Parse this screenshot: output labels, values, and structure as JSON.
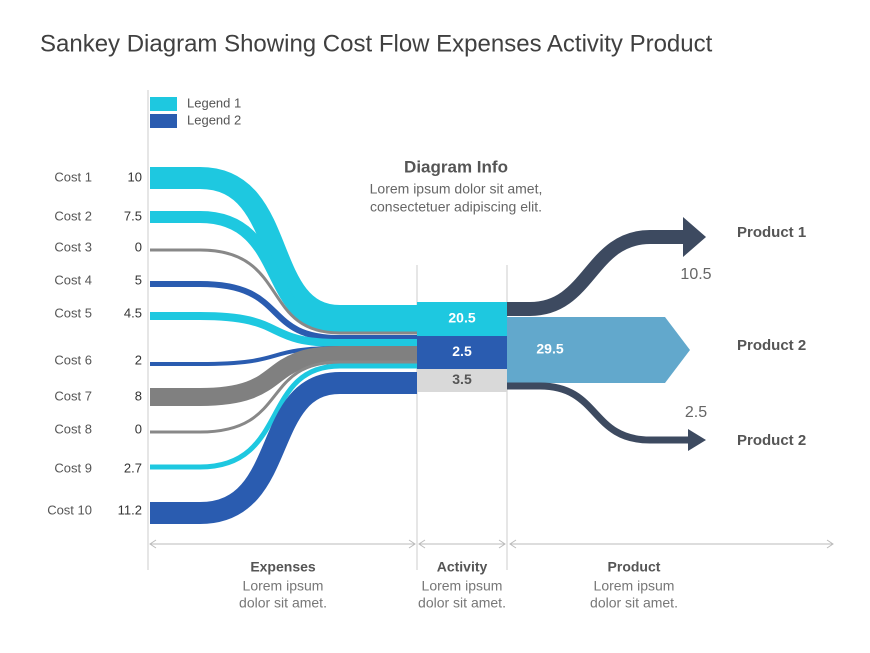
{
  "title": "Sankey Diagram Showing Cost Flow Expenses Activity Product",
  "legend": [
    {
      "label": "Legend 1",
      "color": "#1ec8e0"
    },
    {
      "label": "Legend 2",
      "color": "#2a5cb0"
    }
  ],
  "costs": [
    {
      "label": "Cost 1",
      "value": "10",
      "color": "#1ec8e0"
    },
    {
      "label": "Cost 2",
      "value": "7.5",
      "color": "#1ec8e0"
    },
    {
      "label": "Cost 3",
      "value": "0",
      "color": "#888888"
    },
    {
      "label": "Cost 4",
      "value": "5",
      "color": "#2a5cb0"
    },
    {
      "label": "Cost 5",
      "value": "4.5",
      "color": "#1ec8e0"
    },
    {
      "label": "Cost 6",
      "value": "2",
      "color": "#2a5cb0"
    },
    {
      "label": "Cost 7",
      "value": "8",
      "color": "#808080"
    },
    {
      "label": "Cost 8",
      "value": "0",
      "color": "#888888"
    },
    {
      "label": "Cost 9",
      "value": "2.7",
      "color": "#1ec8e0"
    },
    {
      "label": "Cost 10",
      "value": "11.2",
      "color": "#2a5cb0"
    }
  ],
  "info": {
    "title": "Diagram Info",
    "lines": [
      "Lorem ipsum dolor sit amet,",
      "consectetuer adipiscing elit."
    ]
  },
  "activity": [
    {
      "value": "20.5",
      "color": "#1ec8e0"
    },
    {
      "value": "2.5",
      "color": "#2a5cb0"
    },
    {
      "value": "3.5",
      "color": "#d9d9d9"
    }
  ],
  "products": [
    {
      "label": "Product 1",
      "value": "10.5",
      "color": "#3d4a60"
    },
    {
      "label": "Product 2",
      "value": "29.5",
      "color": "#62a8cc"
    },
    {
      "label": "Product 2",
      "value": "2.5",
      "color": "#3d4a60"
    }
  ],
  "sections": [
    {
      "title": "Expenses",
      "lines": [
        "Lorem ipsum",
        "dolor sit amet."
      ]
    },
    {
      "title": "Activity",
      "lines": [
        "Lorem ipsum",
        "dolor sit amet."
      ]
    },
    {
      "title": "Product",
      "lines": [
        "Lorem ipsum",
        "dolor sit amet."
      ]
    }
  ]
}
